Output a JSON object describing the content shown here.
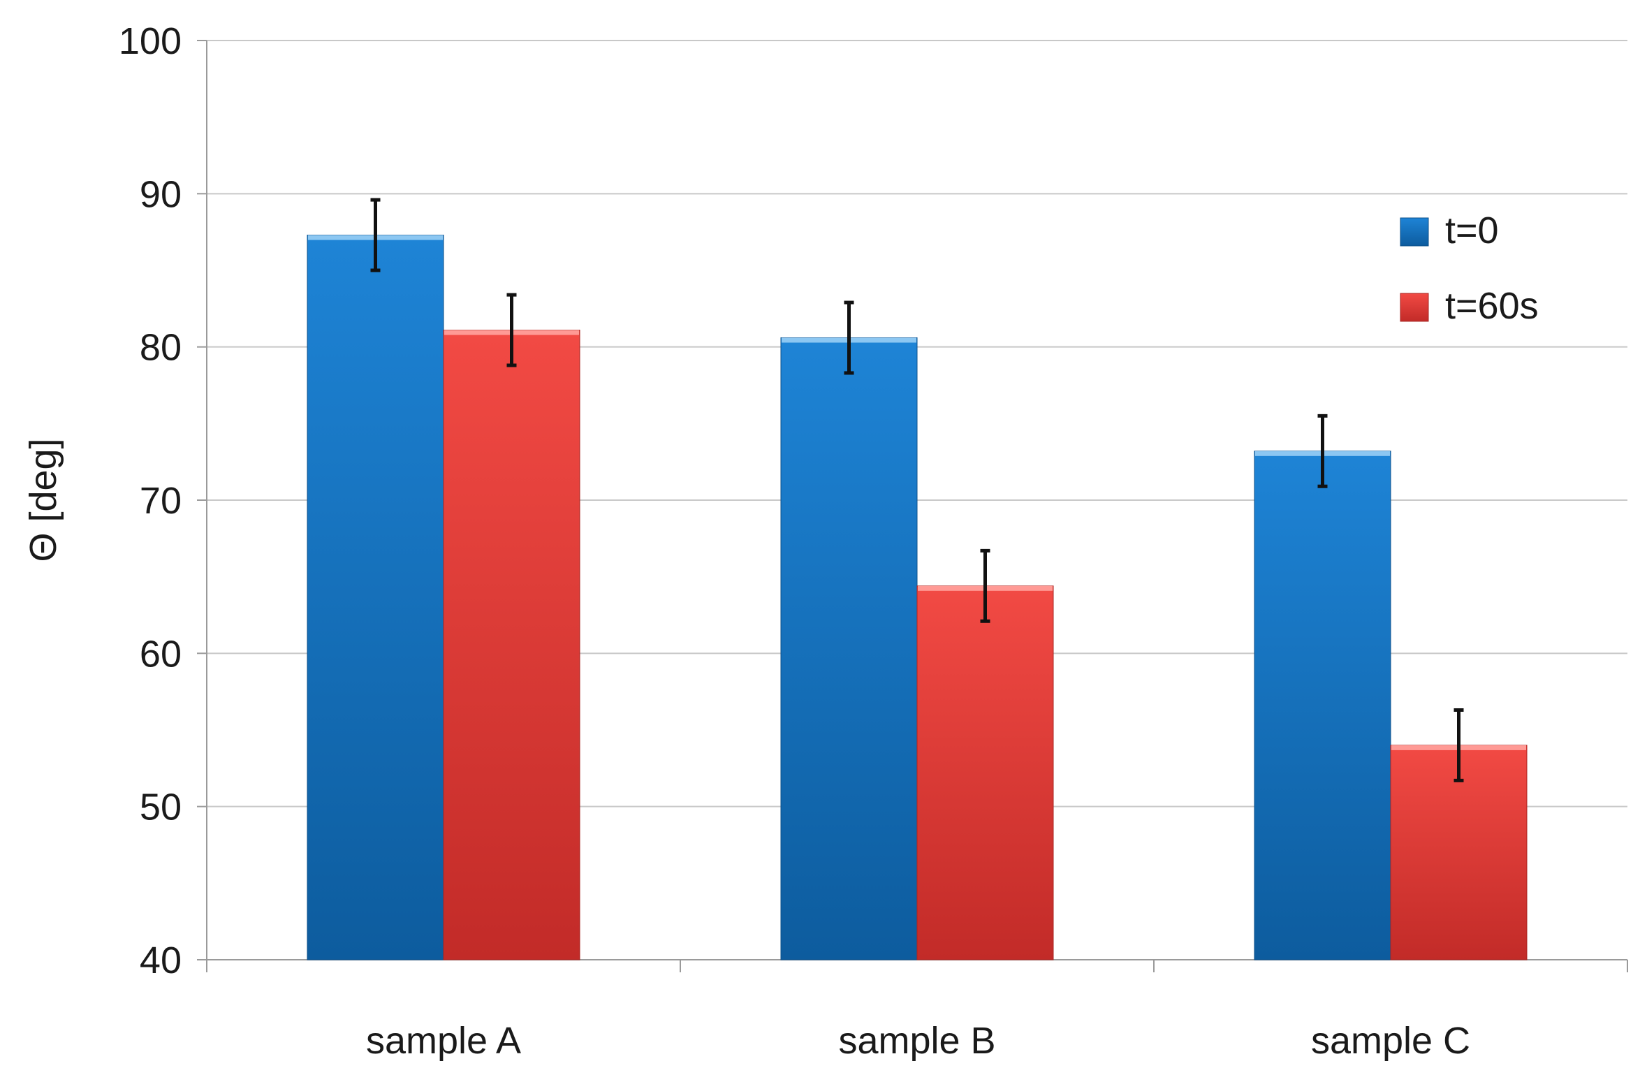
{
  "chart_data": {
    "type": "bar",
    "categories": [
      "sample A",
      "sample B",
      "sample C"
    ],
    "series": [
      {
        "name": "t=0",
        "values": [
          87.3,
          80.6,
          73.2
        ],
        "errors": [
          2.3,
          2.3,
          2.3
        ],
        "color": "#1f77c9"
      },
      {
        "name": "t=60s",
        "values": [
          81.1,
          64.4,
          54.0
        ],
        "errors": [
          2.3,
          2.3,
          2.3
        ],
        "color": "#e23b37"
      }
    ],
    "title": "",
    "xlabel": "",
    "ylabel": "Θ [deg]",
    "ylim": [
      40,
      100
    ],
    "yticks": [
      40,
      50,
      60,
      70,
      80,
      90,
      100
    ],
    "grid": true,
    "legend_position": "top-right"
  }
}
